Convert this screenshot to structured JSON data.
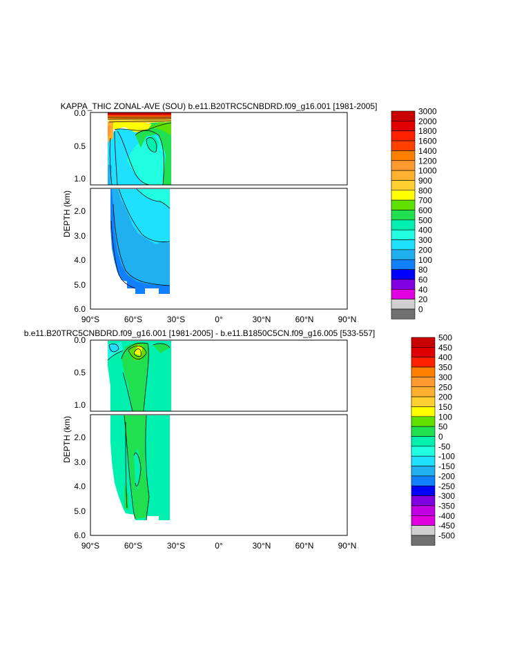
{
  "chart_data": [
    {
      "type": "heatmap",
      "title": "KAPPA_THIC ZONAL-AVE (SOU) b.e11.B20TRC5CNBDRD.f09_g16.001 [1981-2005]",
      "ylabel": "DEPTH (km)",
      "xlabel": "",
      "x_ticks": [
        "90°S",
        "60°S",
        "30°S",
        "0°",
        "30°N",
        "60°N",
        "90°N"
      ],
      "y_ticks_upper": [
        "0.0",
        "0.5",
        "1.0"
      ],
      "y_ticks_lower": [
        "2.0",
        "3.0",
        "4.0",
        "5.0",
        "6.0"
      ],
      "xlim": [
        -90,
        90
      ],
      "ylim": [
        0,
        6
      ],
      "grid": false,
      "legend": "right",
      "colorbar_labels": [
        "3000",
        "2000",
        "1800",
        "1600",
        "1400",
        "1200",
        "1000",
        "900",
        "800",
        "700",
        "600",
        "500",
        "400",
        "300",
        "200",
        "100",
        "80",
        "60",
        "40",
        "20",
        "0"
      ],
      "colors": [
        "#c80000",
        "#e00000",
        "#ff2000",
        "#ff4000",
        "#ff8000",
        "#ff9a30",
        "#ffb030",
        "#ffd030",
        "#ffff00",
        "#60e000",
        "#20e050",
        "#00f0b0",
        "#20ffe0",
        "#20e0ff",
        "#20b0f0",
        "#1080ff",
        "#0000ff",
        "#8000e0",
        "#e000e0",
        "#d0d0d0",
        "#707070"
      ]
    },
    {
      "type": "heatmap",
      "title": "b.e11.B20TRC5CNBDRD.f09_g16.001 [1981-2005] - b.e11.B1850C5CN.f09_g16.005 [533-557]",
      "ylabel": "DEPTH (km)",
      "xlabel": "",
      "x_ticks": [
        "90°S",
        "60°S",
        "30°S",
        "0°",
        "30°N",
        "60°N",
        "90°N"
      ],
      "y_ticks_upper": [
        "0.0",
        "0.5",
        "1.0"
      ],
      "y_ticks_lower": [
        "2.0",
        "3.0",
        "4.0",
        "5.0",
        "6.0"
      ],
      "xlim": [
        -90,
        90
      ],
      "ylim": [
        0,
        6
      ],
      "grid": false,
      "legend": "right",
      "colorbar_labels": [
        "500",
        "450",
        "400",
        "350",
        "300",
        "250",
        "200",
        "150",
        "100",
        "50",
        "0",
        "-50",
        "-100",
        "-150",
        "-200",
        "-250",
        "-300",
        "-350",
        "-400",
        "-450",
        "-500"
      ],
      "colors": [
        "#c80000",
        "#e00000",
        "#ff2000",
        "#ff8000",
        "#ff9a30",
        "#ffb030",
        "#ffd030",
        "#ffff00",
        "#60e000",
        "#20e050",
        "#00f0b0",
        "#20ffe0",
        "#20e0ff",
        "#20b0f0",
        "#1080ff",
        "#0000ff",
        "#8000e0",
        "#c000e0",
        "#e000e0",
        "#d0d0d0",
        "#707070"
      ]
    }
  ]
}
